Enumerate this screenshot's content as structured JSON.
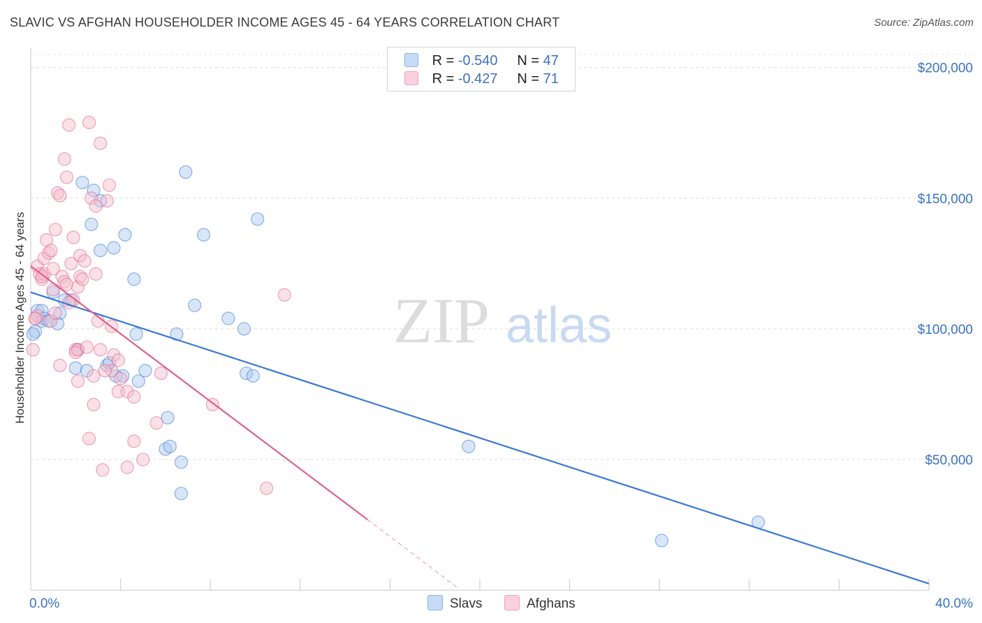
{
  "header": {
    "title": "SLAVIC VS AFGHAN HOUSEHOLDER INCOME AGES 45 - 64 YEARS CORRELATION CHART",
    "source": "Source: ZipAtlas.com"
  },
  "watermark": {
    "zip": "ZIP",
    "atlas": "atlas"
  },
  "legend": {
    "rows": [
      {
        "r_label": "R =",
        "r_value": "-0.540",
        "n_label": "N =",
        "n_value": "47",
        "color": "#8ab4e8"
      },
      {
        "r_label": "R =",
        "r_value": "-0.427",
        "n_label": "N =",
        "n_value": "71",
        "color": "#f0a0bb"
      }
    ]
  },
  "bottom_legend": [
    {
      "label": "Slavs",
      "color": "#8ab4e8"
    },
    {
      "label": "Afghans",
      "color": "#f0a0bb"
    }
  ],
  "chart_data": {
    "type": "scatter",
    "ylabel": "Householder Income Ages 45 - 64 years",
    "x_tick_labels": [
      "0.0%",
      "40.0%"
    ],
    "y_tick_labels": [
      "$50,000",
      "$100,000",
      "$150,000",
      "$200,000"
    ],
    "y_ticks": [
      50000,
      100000,
      150000,
      200000
    ],
    "xlim": [
      0,
      40
    ],
    "ylim": [
      0,
      205000
    ],
    "grid": true,
    "series": [
      {
        "name": "Slavs",
        "color": "#3a78d4",
        "fill": "#a9c8f0",
        "trend": {
          "x": [
            0,
            40
          ],
          "y": [
            114000,
            2500
          ]
        },
        "points": [
          [
            0.2,
            99000
          ],
          [
            0.3,
            107000
          ],
          [
            0.5,
            107000
          ],
          [
            0.5,
            103000
          ],
          [
            0.6,
            104000
          ],
          [
            0.8,
            103000
          ],
          [
            1.0,
            114000
          ],
          [
            1.3,
            106000
          ],
          [
            1.5,
            111000
          ],
          [
            1.8,
            111000
          ],
          [
            2.1,
            92000
          ],
          [
            2.0,
            85000
          ],
          [
            2.3,
            156000
          ],
          [
            2.5,
            84000
          ],
          [
            2.7,
            140000
          ],
          [
            2.8,
            153000
          ],
          [
            3.1,
            149000
          ],
          [
            3.1,
            130000
          ],
          [
            3.4,
            86000
          ],
          [
            3.5,
            87000
          ],
          [
            3.7,
            131000
          ],
          [
            3.8,
            82000
          ],
          [
            4.1,
            82000
          ],
          [
            4.2,
            136000
          ],
          [
            4.6,
            119000
          ],
          [
            4.7,
            98000
          ],
          [
            4.8,
            80000
          ],
          [
            5.1,
            84000
          ],
          [
            6.0,
            54000
          ],
          [
            6.1,
            66000
          ],
          [
            6.2,
            55000
          ],
          [
            6.5,
            98000
          ],
          [
            6.7,
            49000
          ],
          [
            6.7,
            37000
          ],
          [
            6.9,
            160000
          ],
          [
            7.3,
            109000
          ],
          [
            7.7,
            136000
          ],
          [
            8.8,
            104000
          ],
          [
            9.5,
            100000
          ],
          [
            9.6,
            83000
          ],
          [
            9.9,
            82000
          ],
          [
            10.1,
            142000
          ],
          [
            19.5,
            55000
          ],
          [
            28.1,
            19000
          ],
          [
            32.4,
            26000
          ],
          [
            0.1,
            98000
          ],
          [
            1.2,
            102000
          ]
        ]
      },
      {
        "name": "Afghans",
        "color": "#e0608a",
        "fill": "#f5bccd",
        "trend": {
          "x": [
            0,
            15
          ],
          "y": [
            124000,
            27000
          ]
        },
        "trend_dashed": {
          "x": [
            15,
            19
          ],
          "y": [
            27000,
            1000
          ]
        },
        "points": [
          [
            0.1,
            92000
          ],
          [
            0.2,
            104000
          ],
          [
            0.3,
            105000
          ],
          [
            0.3,
            124000
          ],
          [
            0.4,
            121000
          ],
          [
            0.5,
            119000
          ],
          [
            0.6,
            121000
          ],
          [
            0.6,
            127000
          ],
          [
            0.7,
            134000
          ],
          [
            0.8,
            129000
          ],
          [
            0.9,
            130000
          ],
          [
            0.9,
            103000
          ],
          [
            1.0,
            123000
          ],
          [
            1.0,
            115000
          ],
          [
            1.1,
            138000
          ],
          [
            1.1,
            106000
          ],
          [
            1.2,
            152000
          ],
          [
            1.3,
            151000
          ],
          [
            1.3,
            86000
          ],
          [
            1.4,
            120000
          ],
          [
            1.5,
            118000
          ],
          [
            1.5,
            165000
          ],
          [
            1.6,
            158000
          ],
          [
            1.6,
            117000
          ],
          [
            1.7,
            178000
          ],
          [
            1.8,
            125000
          ],
          [
            1.9,
            135000
          ],
          [
            1.9,
            111000
          ],
          [
            2.0,
            92000
          ],
          [
            2.1,
            92000
          ],
          [
            2.1,
            116000
          ],
          [
            2.2,
            128000
          ],
          [
            2.2,
            120000
          ],
          [
            2.3,
            119000
          ],
          [
            2.4,
            126000
          ],
          [
            2.5,
            93000
          ],
          [
            2.6,
            179000
          ],
          [
            2.6,
            58000
          ],
          [
            2.7,
            150000
          ],
          [
            2.8,
            82000
          ],
          [
            2.8,
            71000
          ],
          [
            2.9,
            147000
          ],
          [
            3.0,
            103000
          ],
          [
            3.1,
            92000
          ],
          [
            3.1,
            171000
          ],
          [
            3.2,
            46000
          ],
          [
            3.4,
            149000
          ],
          [
            3.5,
            155000
          ],
          [
            3.6,
            101000
          ],
          [
            3.6,
            84000
          ],
          [
            3.7,
            90000
          ],
          [
            3.9,
            88000
          ],
          [
            3.9,
            76000
          ],
          [
            4.0,
            81000
          ],
          [
            4.3,
            47000
          ],
          [
            4.3,
            76000
          ],
          [
            4.6,
            57000
          ],
          [
            4.6,
            74000
          ],
          [
            5.0,
            50000
          ],
          [
            5.6,
            64000
          ],
          [
            5.8,
            83000
          ],
          [
            8.1,
            71000
          ],
          [
            10.5,
            39000
          ],
          [
            11.3,
            113000
          ],
          [
            0.2,
            104000
          ],
          [
            0.5,
            120000
          ],
          [
            2.1,
            80000
          ],
          [
            2.0,
            91000
          ],
          [
            3.3,
            84000
          ],
          [
            1.7,
            110000
          ],
          [
            2.9,
            121000
          ]
        ]
      }
    ]
  }
}
